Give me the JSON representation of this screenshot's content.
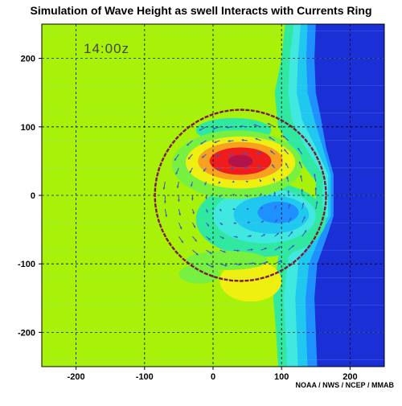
{
  "chart_data": {
    "type": "heatmap",
    "title": "Simulation of Wave Height as swell Interacts with Currents Ring",
    "time_label": "14:00z",
    "credit": "NOAA / NWS / NCEP / MMAB",
    "xlim": [
      -250,
      250
    ],
    "ylim": [
      -250,
      250
    ],
    "x_ticks": [
      -200,
      -100,
      0,
      100,
      200
    ],
    "y_ticks": [
      200,
      100,
      0,
      -100,
      -200
    ],
    "grid": true,
    "colors": {
      "background_field": "#a8f20a",
      "deep_blue": "#1a2fd6",
      "mid_blue": "#1e90ff",
      "cyan": "#20c8f0",
      "light_cyan": "#40e8e0",
      "aqua": "#30e8a0",
      "light_green": "#78f040",
      "yellow": "#f0f010",
      "orange": "#f8a020",
      "red": "#ee1c1c",
      "peak": "#b2134a",
      "ring": "#7a1b33",
      "vectors": "#3c55c8"
    },
    "ring": {
      "center": [
        40,
        0
      ],
      "radius": 125
    },
    "peak_center": [
      40,
      50
    ]
  }
}
